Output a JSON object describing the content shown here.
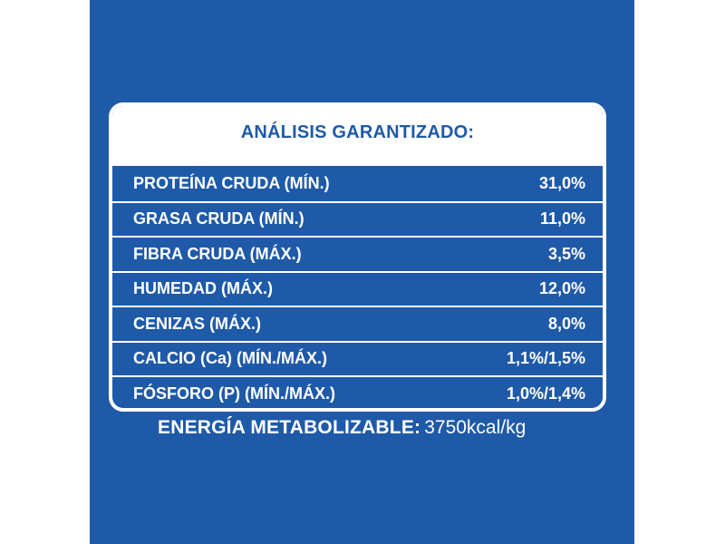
{
  "colors": {
    "panel_blue": "#1f5aa8",
    "text_white": "#ffffff",
    "page_background": "#ffffff"
  },
  "table": {
    "title": "ANÁLISIS GARANTIZADO:",
    "rows": [
      {
        "label": "PROTEÍNA CRUDA (MÍN.)",
        "value": "31,0%"
      },
      {
        "label": "GRASA CRUDA (MÍN.)",
        "value": "11,0%"
      },
      {
        "label": "FIBRA CRUDA (MÁX.)",
        "value": "3,5%"
      },
      {
        "label": "HUMEDAD (MÁX.)",
        "value": "12,0%"
      },
      {
        "label": "CENIZAS (MÁX.)",
        "value": "8,0%"
      },
      {
        "label": "CALCIO (Ca) (MÍN./MÁX.)",
        "value": "1,1%/1,5%"
      },
      {
        "label": "FÓSFORO (P) (MÍN./MÁX.)",
        "value": "1,0%/1,4%"
      }
    ]
  },
  "energy": {
    "label": "ENERGÍA METABOLIZABLE:",
    "value": "3750kcal/kg"
  }
}
